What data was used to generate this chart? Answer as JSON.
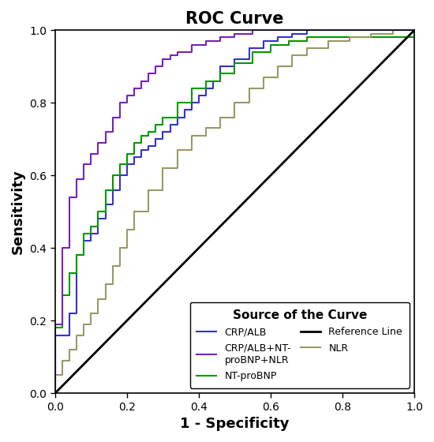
{
  "title": "ROC Curve",
  "xlabel": "1 - Specificity",
  "ylabel": "Sensitivity",
  "legend_title": "Source of the Curve",
  "xlim": [
    0.0,
    1.0
  ],
  "ylim": [
    0.0,
    1.0
  ],
  "xticks": [
    0.0,
    0.2,
    0.4,
    0.6,
    0.8,
    1.0
  ],
  "yticks": [
    0.0,
    0.2,
    0.4,
    0.6,
    0.8,
    1.0
  ],
  "curves": {
    "CRP/ALB": {
      "color": "#3333cc",
      "fpr": [
        0.0,
        0.0,
        0.04,
        0.04,
        0.06,
        0.06,
        0.08,
        0.08,
        0.1,
        0.1,
        0.12,
        0.12,
        0.14,
        0.14,
        0.16,
        0.16,
        0.18,
        0.18,
        0.2,
        0.2,
        0.22,
        0.22,
        0.24,
        0.24,
        0.26,
        0.26,
        0.28,
        0.28,
        0.3,
        0.3,
        0.32,
        0.32,
        0.34,
        0.34,
        0.36,
        0.36,
        0.38,
        0.38,
        0.4,
        0.4,
        0.42,
        0.42,
        0.44,
        0.44,
        0.46,
        0.46,
        0.5,
        0.5,
        0.54,
        0.54,
        0.58,
        0.58,
        0.62,
        0.62,
        0.66,
        0.66,
        0.7,
        0.7,
        1.0
      ],
      "tpr": [
        0.0,
        0.16,
        0.16,
        0.22,
        0.22,
        0.38,
        0.38,
        0.42,
        0.42,
        0.44,
        0.44,
        0.48,
        0.48,
        0.52,
        0.52,
        0.56,
        0.56,
        0.6,
        0.6,
        0.63,
        0.63,
        0.65,
        0.65,
        0.67,
        0.67,
        0.68,
        0.68,
        0.7,
        0.7,
        0.72,
        0.72,
        0.74,
        0.74,
        0.76,
        0.76,
        0.78,
        0.78,
        0.8,
        0.8,
        0.82,
        0.82,
        0.84,
        0.84,
        0.86,
        0.86,
        0.9,
        0.9,
        0.92,
        0.92,
        0.95,
        0.95,
        0.97,
        0.97,
        0.98,
        0.98,
        0.99,
        0.99,
        1.0,
        1.0
      ]
    },
    "NT-proBNP": {
      "color": "#009900",
      "fpr": [
        0.0,
        0.0,
        0.02,
        0.02,
        0.04,
        0.04,
        0.06,
        0.06,
        0.08,
        0.08,
        0.1,
        0.1,
        0.12,
        0.12,
        0.14,
        0.14,
        0.16,
        0.16,
        0.18,
        0.18,
        0.2,
        0.2,
        0.22,
        0.22,
        0.24,
        0.24,
        0.26,
        0.26,
        0.28,
        0.28,
        0.3,
        0.3,
        0.34,
        0.34,
        0.38,
        0.38,
        0.42,
        0.42,
        0.46,
        0.46,
        0.5,
        0.5,
        0.55,
        0.55,
        0.6,
        0.6,
        0.65,
        0.65,
        0.7,
        0.7,
        1.0
      ],
      "tpr": [
        0.0,
        0.18,
        0.18,
        0.27,
        0.27,
        0.33,
        0.33,
        0.38,
        0.38,
        0.44,
        0.44,
        0.46,
        0.46,
        0.5,
        0.5,
        0.56,
        0.56,
        0.6,
        0.6,
        0.63,
        0.63,
        0.66,
        0.66,
        0.69,
        0.69,
        0.71,
        0.71,
        0.72,
        0.72,
        0.74,
        0.74,
        0.76,
        0.76,
        0.8,
        0.8,
        0.84,
        0.84,
        0.86,
        0.86,
        0.88,
        0.88,
        0.91,
        0.91,
        0.94,
        0.94,
        0.96,
        0.96,
        0.97,
        0.97,
        0.98,
        1.0
      ]
    },
    "NLR": {
      "color": "#999966",
      "fpr": [
        0.0,
        0.0,
        0.02,
        0.02,
        0.04,
        0.04,
        0.06,
        0.06,
        0.08,
        0.08,
        0.1,
        0.1,
        0.12,
        0.12,
        0.14,
        0.14,
        0.16,
        0.16,
        0.18,
        0.18,
        0.2,
        0.2,
        0.22,
        0.22,
        0.26,
        0.26,
        0.3,
        0.3,
        0.34,
        0.34,
        0.38,
        0.38,
        0.42,
        0.42,
        0.46,
        0.46,
        0.5,
        0.5,
        0.54,
        0.54,
        0.58,
        0.58,
        0.62,
        0.62,
        0.66,
        0.66,
        0.7,
        0.7,
        0.76,
        0.76,
        0.82,
        0.82,
        0.88,
        0.88,
        0.94,
        0.94,
        1.0
      ],
      "tpr": [
        0.0,
        0.05,
        0.05,
        0.09,
        0.09,
        0.12,
        0.12,
        0.16,
        0.16,
        0.19,
        0.19,
        0.22,
        0.22,
        0.26,
        0.26,
        0.3,
        0.3,
        0.35,
        0.35,
        0.4,
        0.4,
        0.45,
        0.45,
        0.5,
        0.5,
        0.56,
        0.56,
        0.62,
        0.62,
        0.67,
        0.67,
        0.71,
        0.71,
        0.73,
        0.73,
        0.76,
        0.76,
        0.8,
        0.8,
        0.84,
        0.84,
        0.87,
        0.87,
        0.9,
        0.9,
        0.93,
        0.93,
        0.95,
        0.95,
        0.97,
        0.97,
        0.98,
        0.98,
        0.99,
        0.99,
        1.0,
        1.0
      ]
    },
    "CRP/ALB+NT-proBNP+NLR": {
      "color": "#7722bb",
      "fpr": [
        0.0,
        0.0,
        0.02,
        0.02,
        0.04,
        0.04,
        0.06,
        0.06,
        0.08,
        0.08,
        0.1,
        0.1,
        0.12,
        0.12,
        0.14,
        0.14,
        0.16,
        0.16,
        0.18,
        0.18,
        0.2,
        0.2,
        0.22,
        0.22,
        0.24,
        0.24,
        0.26,
        0.26,
        0.28,
        0.28,
        0.3,
        0.3,
        0.32,
        0.32,
        0.34,
        0.34,
        0.38,
        0.38,
        0.42,
        0.42,
        0.46,
        0.46,
        0.5,
        0.5,
        0.55,
        0.55,
        0.6,
        0.6,
        0.65,
        0.65,
        1.0
      ],
      "tpr": [
        0.0,
        0.19,
        0.19,
        0.4,
        0.4,
        0.54,
        0.54,
        0.59,
        0.59,
        0.63,
        0.63,
        0.66,
        0.66,
        0.69,
        0.69,
        0.72,
        0.72,
        0.76,
        0.76,
        0.8,
        0.8,
        0.82,
        0.82,
        0.84,
        0.84,
        0.86,
        0.86,
        0.88,
        0.88,
        0.9,
        0.9,
        0.92,
        0.92,
        0.93,
        0.93,
        0.94,
        0.94,
        0.96,
        0.96,
        0.97,
        0.97,
        0.98,
        0.98,
        0.99,
        0.99,
        1.0,
        1.0,
        1.0,
        1.0,
        1.0,
        1.0
      ]
    }
  },
  "curve_order": [
    "CRP/ALB",
    "NT-proBNP",
    "NLR",
    "CRP/ALB+NT-proBNP+NLR"
  ],
  "background_color": "#ffffff",
  "title_fontsize": 15,
  "axis_label_fontsize": 13,
  "tick_fontsize": 10,
  "legend_title_fontsize": 10,
  "legend_fontsize": 9,
  "line_width": 1.5
}
